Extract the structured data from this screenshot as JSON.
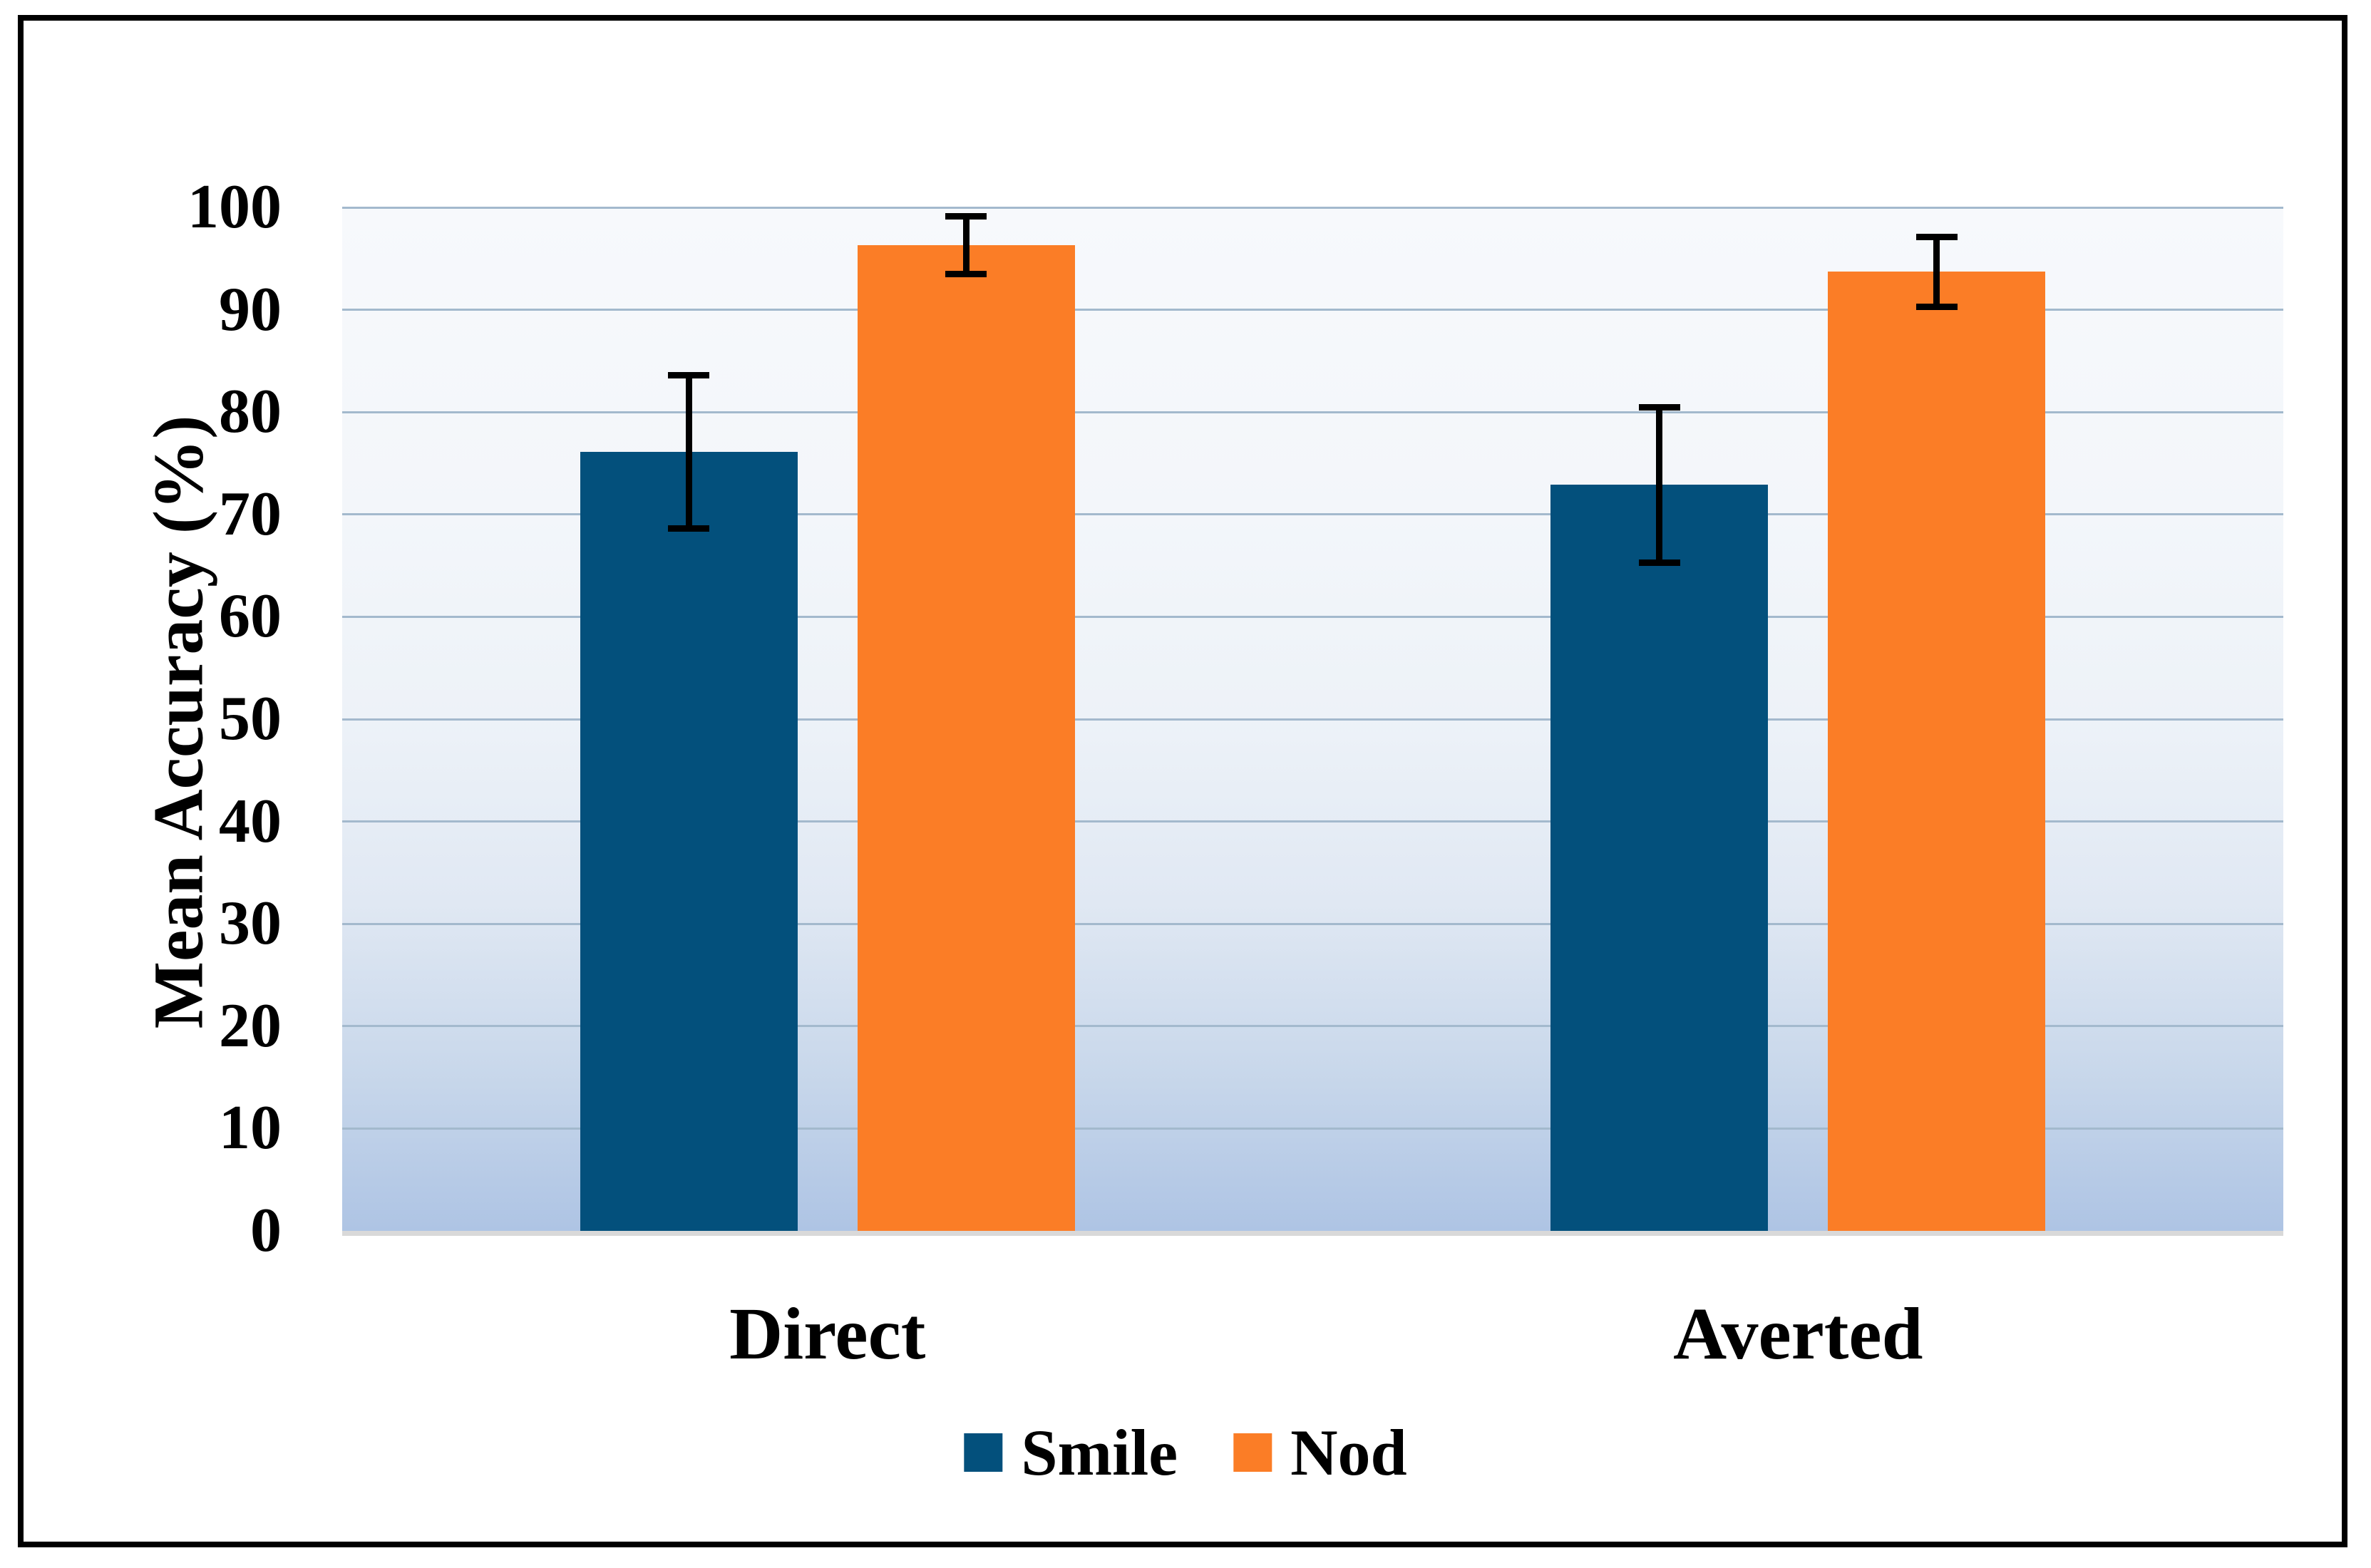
{
  "chart_data": {
    "type": "bar",
    "categories": [
      "Direct",
      "Averted"
    ],
    "series": [
      {
        "name": "Smile",
        "color": "#03507C",
        "values": [
          76.1,
          72.9
        ],
        "errors": [
          7.5,
          7.6
        ]
      },
      {
        "name": "Nod",
        "color": "#FB7D26",
        "values": [
          96.3,
          93.7
        ],
        "errors": [
          2.8,
          3.4
        ]
      }
    ],
    "title": "",
    "xlabel": "",
    "ylabel": "Mean Accuracy (%)",
    "ylim": [
      0,
      100
    ],
    "yticks": [
      0,
      10,
      20,
      30,
      40,
      50,
      60,
      70,
      80,
      90,
      100
    ],
    "grid": "horizontal",
    "legend_position": "bottom",
    "error_bar_color": "#000000",
    "gridline_color": "#A3B9CD",
    "axis_line_color": "#D9D9D9",
    "plot_bg_top": "#F7F9FC",
    "plot_bg_bottom": "#AEC4E4"
  }
}
